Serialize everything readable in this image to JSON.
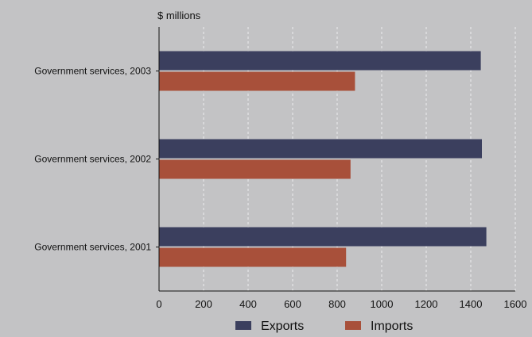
{
  "chart_data": {
    "type": "bar",
    "orientation": "horizontal",
    "title": "",
    "unit_label": "$ millions",
    "xlabel": "",
    "ylabel": "",
    "categories": [
      "Government services, 2003",
      "Government services, 2002",
      "Government services, 2001"
    ],
    "series": [
      {
        "name": "Exports",
        "color": "#3b3f5e",
        "values": [
          1445,
          1450,
          1470
        ]
      },
      {
        "name": "Imports",
        "color": "#a8503a",
        "values": [
          880,
          860,
          840
        ]
      }
    ],
    "xlim": [
      0,
      1600
    ],
    "xticks": [
      "0",
      "200",
      "400",
      "600",
      "800",
      "1000",
      "1200",
      "1400",
      "1600"
    ],
    "grid": "vertical-dashed",
    "legend_position": "bottom"
  }
}
